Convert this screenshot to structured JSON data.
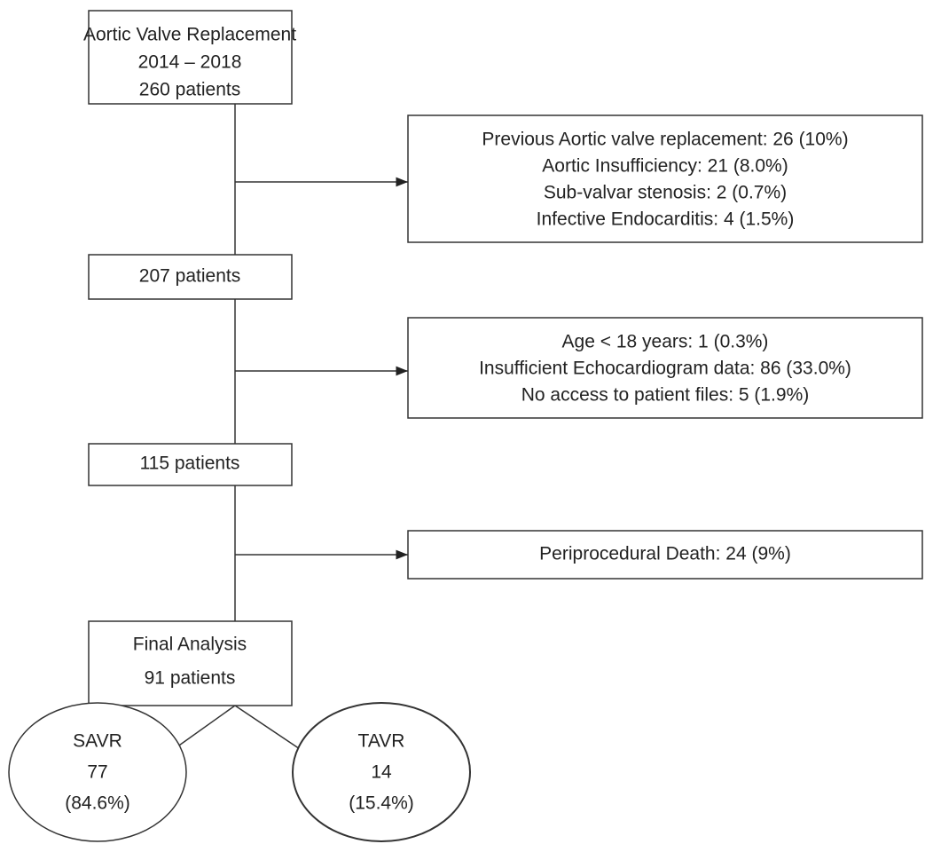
{
  "nodes": [
    {
      "lines": [
        "Aortic Valve Replacement",
        "2014 – 2018",
        "260 patients"
      ]
    },
    {
      "lines": [
        "207 patients"
      ]
    },
    {
      "lines": [
        "115 patients"
      ]
    },
    {
      "lines": [
        "Final Analysis",
        "91 patients"
      ]
    }
  ],
  "exclusions": [
    {
      "lines": [
        "Previous Aortic valve replacement: 26 (10%)",
        "Aortic Insufficiency: 21 (8.0%)",
        "Sub-valvar stenosis: 2 (0.7%)",
        "Infective Endocarditis: 4 (1.5%)"
      ]
    },
    {
      "lines": [
        "Age < 18 years: 1 (0.3%)",
        "Insufficient Echocardiogram data:   86 (33.0%)",
        "No access to patient files: 5 (1.9%)"
      ]
    },
    {
      "lines": [
        "Periprocedural Death: 24 (9%)"
      ]
    }
  ],
  "outcomes": [
    {
      "lines": [
        "SAVR",
        "77",
        "(84.6%)"
      ]
    },
    {
      "lines": [
        "TAVR",
        "14",
        "(15.4%)"
      ]
    }
  ]
}
